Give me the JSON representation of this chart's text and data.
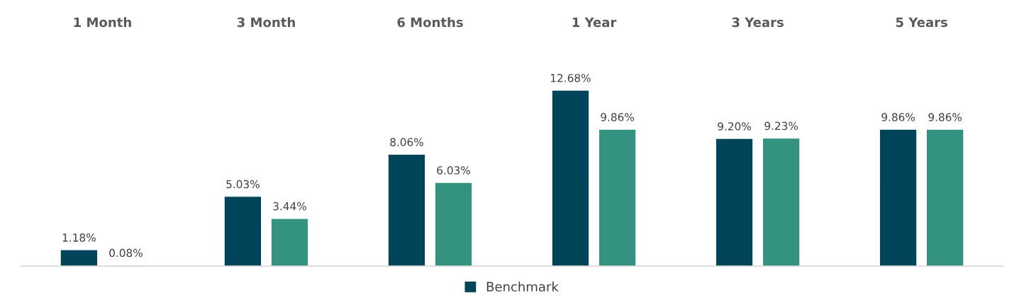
{
  "chart_data": {
    "type": "bar",
    "categories": [
      "1 Month",
      "3 Month",
      "6 Months",
      "1 Year",
      "3 Years",
      "5 Years"
    ],
    "series": [
      {
        "name": "Benchmark",
        "color": "#00445a",
        "values": [
          1.18,
          5.03,
          8.06,
          12.68,
          9.2,
          9.86
        ],
        "value_labels": [
          "1.18%",
          "5.03%",
          "8.06%",
          "12.68%",
          "9.20%",
          "9.86%"
        ]
      },
      {
        "color": "#339380",
        "values": [
          0.08,
          3.44,
          6.03,
          9.86,
          9.23,
          9.86
        ],
        "value_labels": [
          "0.08%",
          "3.44%",
          "6.03%",
          "9.86%",
          "9.23%",
          "9.86%"
        ]
      }
    ],
    "legend": "bottom",
    "grid": false
  }
}
